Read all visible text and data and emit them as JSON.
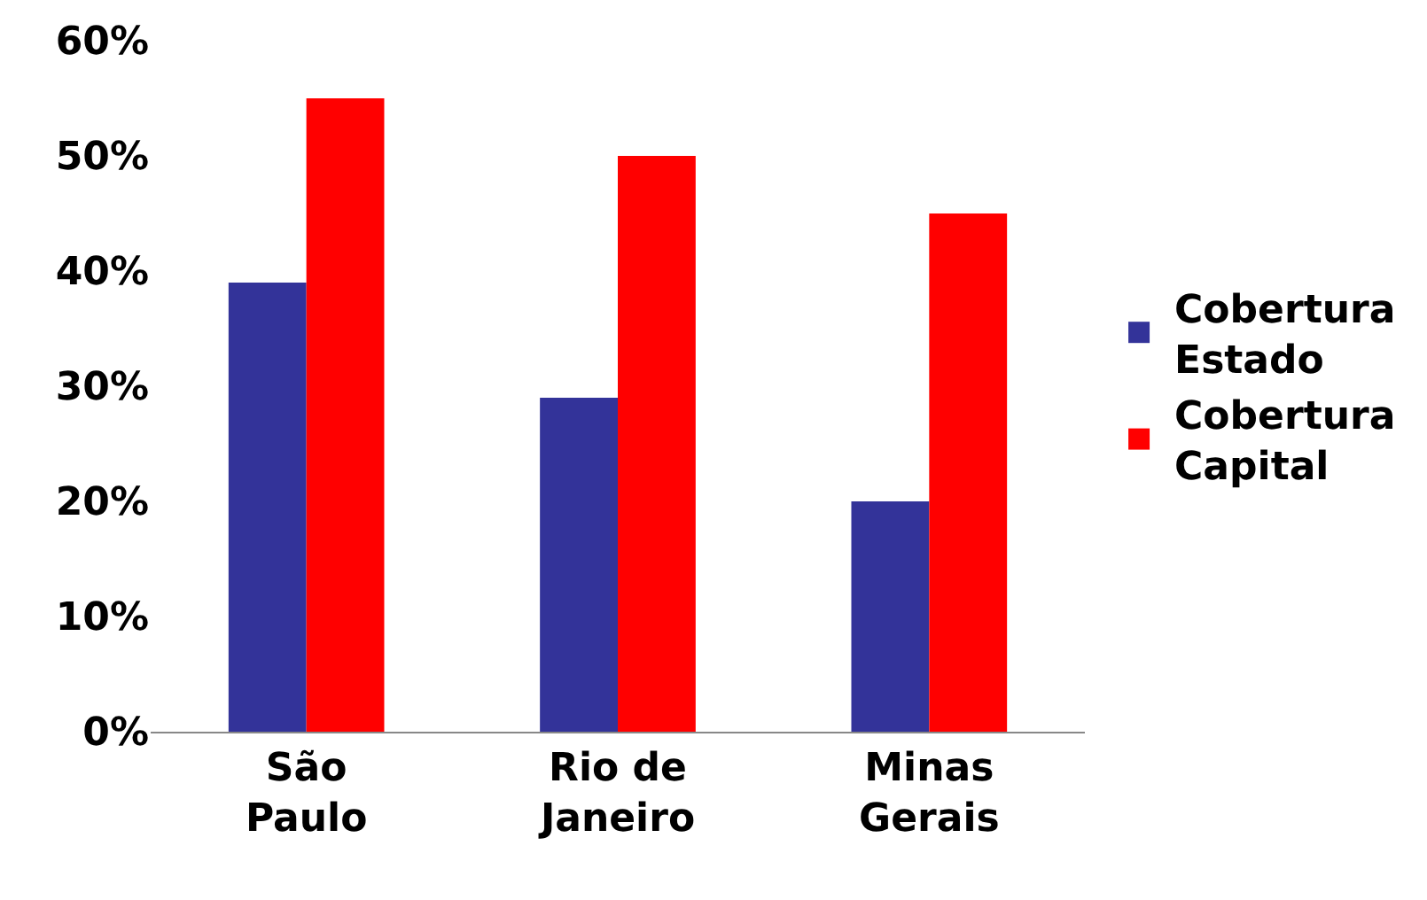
{
  "chart_data": {
    "type": "bar",
    "categories": [
      "São Paulo",
      "Rio de Janeiro",
      "Minas Gerais"
    ],
    "series": [
      {
        "name": "Cobertura Estado",
        "color": "#333399",
        "values": [
          39,
          29,
          20
        ]
      },
      {
        "name": "Cobertura Capital",
        "color": "#ff0000",
        "values": [
          55,
          50,
          45
        ]
      }
    ],
    "ylim": [
      0,
      60
    ],
    "yticks": [
      {
        "value": 0,
        "label": "0%"
      },
      {
        "value": 10,
        "label": "10%"
      },
      {
        "value": 20,
        "label": "20%"
      },
      {
        "value": 30,
        "label": "30%"
      },
      {
        "value": 40,
        "label": "40%"
      },
      {
        "value": 50,
        "label": "50%"
      },
      {
        "value": 60,
        "label": "60%"
      }
    ],
    "legend": "right"
  }
}
